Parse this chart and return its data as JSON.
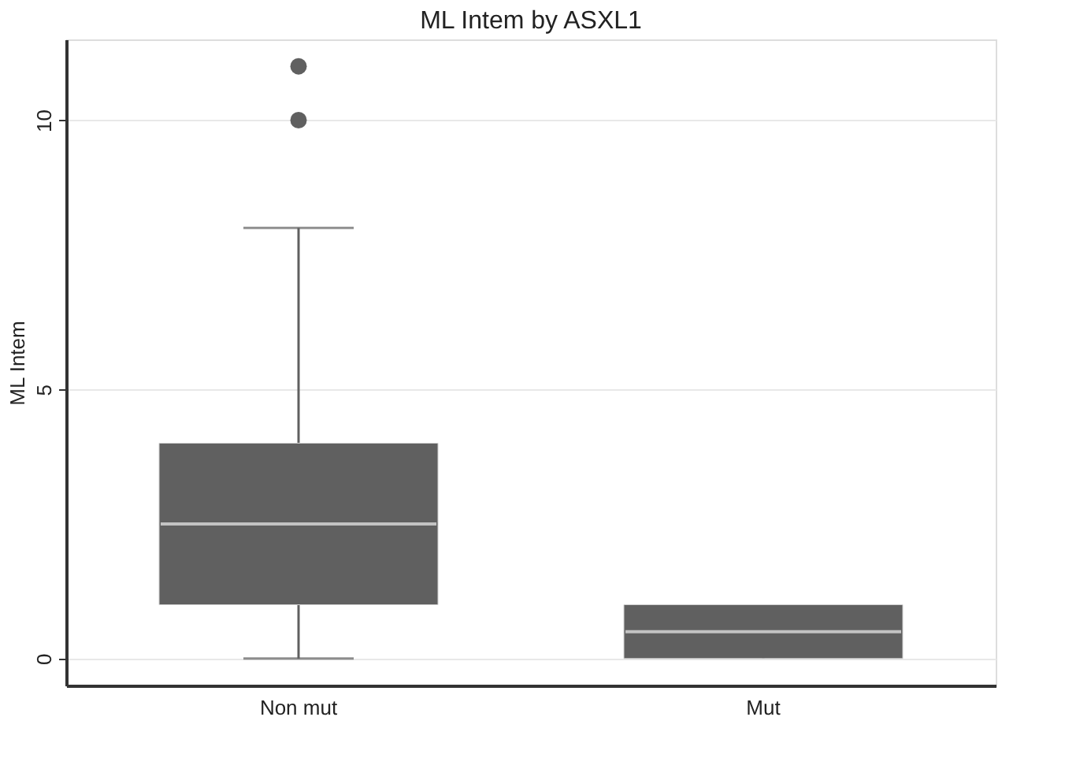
{
  "chart_data": {
    "type": "box",
    "title": "ML Intem by ASXL1",
    "ylabel": "ML Intem",
    "categories": [
      "Non mut",
      "Mut"
    ],
    "boxes": [
      {
        "low": 0,
        "q1": 1,
        "median": 2.5,
        "q3": 4,
        "high": 8,
        "outliers": [
          10,
          11
        ]
      },
      {
        "low": 0,
        "q1": 0,
        "median": 0.5,
        "q3": 1,
        "high": 1
      }
    ],
    "color": "#606060",
    "ylim": [
      -0.5,
      11.5
    ],
    "yticks": [
      0,
      5,
      10
    ],
    "grid": "y"
  }
}
